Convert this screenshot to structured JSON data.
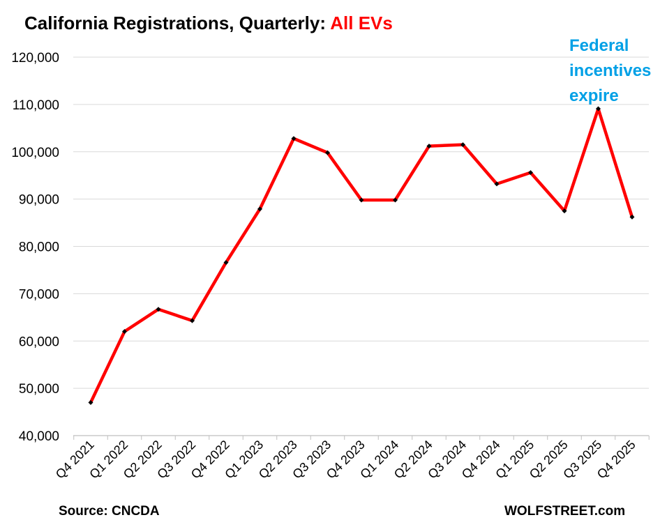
{
  "title": {
    "main": "California Registrations, Quarterly: ",
    "highlight": "All EVs"
  },
  "annotation": {
    "lines": [
      "Federal",
      "incentives",
      "expire"
    ]
  },
  "source": "Source: CNCDA",
  "credit": "WOLFSTREET.com",
  "colors": {
    "line": "#ff0000",
    "marker": "#000000",
    "grid": "#d9d9d9",
    "annotation": "#00a0e6",
    "highlight": "#ff0000"
  },
  "chart_data": {
    "type": "line",
    "title": "California Registrations, Quarterly: All EVs",
    "xlabel": "",
    "ylabel": "",
    "ylim": [
      40000,
      120000
    ],
    "yticks": [
      40000,
      50000,
      60000,
      70000,
      80000,
      90000,
      100000,
      110000,
      120000
    ],
    "ytick_labels": [
      "40,000",
      "50,000",
      "60,000",
      "70,000",
      "80,000",
      "90,000",
      "100,000",
      "110,000",
      "120,000"
    ],
    "grid": true,
    "categories": [
      "Q4 2021",
      "Q1 2022",
      "Q2 2022",
      "Q3 2022",
      "Q4 2022",
      "Q1 2023",
      "Q2 2023",
      "Q3 2023",
      "Q4 2023",
      "Q1 2024",
      "Q2 2024",
      "Q3 2024",
      "Q4 2024",
      "Q1 2025",
      "Q2 2025",
      "Q3 2025",
      "Q4 2025"
    ],
    "series": [
      {
        "name": "All EVs",
        "values": [
          47000,
          62000,
          66700,
          64300,
          76600,
          87900,
          102800,
          99800,
          89800,
          89800,
          101200,
          101500,
          93200,
          95600,
          87500,
          109100,
          86200
        ]
      }
    ]
  }
}
